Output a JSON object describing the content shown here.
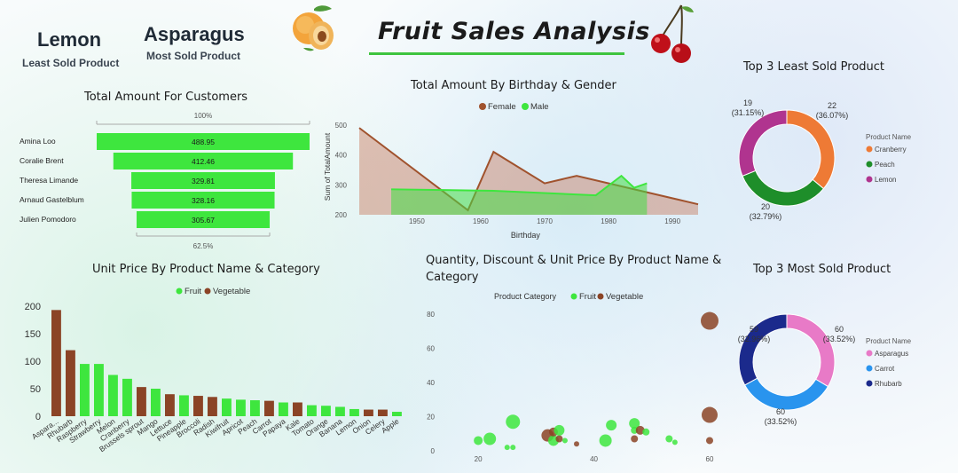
{
  "header": {
    "title": "Fruit Sales Analysis",
    "least_value": "Lemon",
    "least_label": "Least Sold Product",
    "most_value": "Asparagus",
    "most_label": "Most Sold Product"
  },
  "colors": {
    "fruit": "#3ee63e",
    "vegetable": "#8b4426",
    "female": "#a0522d",
    "male": "#3ee63e"
  },
  "chart_data": [
    {
      "id": "funnel",
      "type": "bar",
      "title": "Total Amount For Customers",
      "top_pct": "100%",
      "bottom_pct": "62.5%",
      "categories": [
        "Amina Loo",
        "Coralie Brent",
        "Theresa Limande",
        "Arnaud Gastelblum",
        "Julien Pomodoro"
      ],
      "values": [
        488.95,
        412.46,
        329.81,
        328.16,
        305.67
      ]
    },
    {
      "id": "area",
      "type": "area",
      "title": "Total Amount By Birthday & Gender",
      "xlabel": "Birthday",
      "ylabel": "Sum of TotalAmount",
      "xticks": [
        1950,
        1960,
        1970,
        1980,
        1990
      ],
      "yticks": [
        200,
        300,
        400,
        500
      ],
      "xlim": [
        1941,
        1994
      ],
      "ylim": [
        200,
        520
      ],
      "series": [
        {
          "name": "Female",
          "x": [
            1941,
            1958,
            1962,
            1970,
            1975,
            1985,
            1994
          ],
          "y": [
            490,
            215,
            410,
            305,
            330,
            280,
            235
          ]
        },
        {
          "name": "Male",
          "x": [
            1946,
            1962,
            1978,
            1982,
            1984,
            1986
          ],
          "y": [
            285,
            280,
            265,
            330,
            290,
            305
          ]
        }
      ]
    },
    {
      "id": "unitprice",
      "type": "bar",
      "title": "Unit Price By Product Name & Category",
      "legend": [
        "Fruit",
        "Vegetable"
      ],
      "yticks": [
        0,
        50,
        100,
        150,
        200
      ],
      "ylim": [
        0,
        200
      ],
      "categories": [
        "Aspara...",
        "Rhubarb",
        "Raspberry",
        "Strawberry",
        "Melon",
        "Cranberry",
        "Brussels sprout",
        "Mango",
        "Lettuce",
        "Pineapple",
        "Broccoli",
        "Radish",
        "Kiwifruit",
        "Apricot",
        "Peach",
        "Carrot",
        "Papaya",
        "Kale",
        "Tomato",
        "Orange",
        "Banana",
        "Lemon",
        "Onion",
        "Celery",
        "Apple"
      ],
      "values": [
        193,
        120,
        95,
        95,
        75,
        68,
        53,
        50,
        40,
        38,
        37,
        35,
        32,
        30,
        29,
        28,
        25,
        25,
        20,
        19,
        17,
        13,
        12,
        12,
        8
      ],
      "category_type": [
        "Vegetable",
        "Vegetable",
        "Fruit",
        "Fruit",
        "Fruit",
        "Fruit",
        "Vegetable",
        "Fruit",
        "Vegetable",
        "Fruit",
        "Vegetable",
        "Vegetable",
        "Fruit",
        "Fruit",
        "Fruit",
        "Vegetable",
        "Fruit",
        "Vegetable",
        "Fruit",
        "Fruit",
        "Fruit",
        "Fruit",
        "Vegetable",
        "Vegetable",
        "Fruit"
      ]
    },
    {
      "id": "scatter",
      "type": "scatter",
      "title": "Quantity, Discount & Unit Price By Product Name & Category",
      "legend_title": "Product Category",
      "legend": [
        "Fruit",
        "Vegetable"
      ],
      "xticks": [
        20,
        40,
        60
      ],
      "yticks": [
        0,
        20,
        40,
        60,
        80
      ],
      "xlim": [
        14,
        60
      ],
      "ylim": [
        0,
        82
      ],
      "points": [
        {
          "x": 20,
          "y": 6,
          "r": 5,
          "cat": "Fruit"
        },
        {
          "x": 22,
          "y": 7,
          "r": 7,
          "cat": "Fruit"
        },
        {
          "x": 25,
          "y": 2,
          "r": 3,
          "cat": "Fruit"
        },
        {
          "x": 26,
          "y": 2,
          "r": 3,
          "cat": "Fruit"
        },
        {
          "x": 26,
          "y": 17,
          "r": 8,
          "cat": "Fruit"
        },
        {
          "x": 32,
          "y": 9,
          "r": 7,
          "cat": "Vegetable"
        },
        {
          "x": 33,
          "y": 6,
          "r": 6,
          "cat": "Fruit"
        },
        {
          "x": 33,
          "y": 11,
          "r": 5,
          "cat": "Vegetable"
        },
        {
          "x": 34,
          "y": 7,
          "r": 4,
          "cat": "Vegetable"
        },
        {
          "x": 34,
          "y": 12,
          "r": 6,
          "cat": "Fruit"
        },
        {
          "x": 35,
          "y": 6,
          "r": 3,
          "cat": "Fruit"
        },
        {
          "x": 37,
          "y": 4,
          "r": 3,
          "cat": "Vegetable"
        },
        {
          "x": 42,
          "y": 6,
          "r": 7,
          "cat": "Fruit"
        },
        {
          "x": 43,
          "y": 15,
          "r": 6,
          "cat": "Fruit"
        },
        {
          "x": 47,
          "y": 7,
          "r": 4,
          "cat": "Vegetable"
        },
        {
          "x": 47,
          "y": 16,
          "r": 6,
          "cat": "Fruit"
        },
        {
          "x": 47,
          "y": 12,
          "r": 4,
          "cat": "Fruit"
        },
        {
          "x": 48,
          "y": 12,
          "r": 5,
          "cat": "Vegetable"
        },
        {
          "x": 49,
          "y": 11,
          "r": 4,
          "cat": "Fruit"
        },
        {
          "x": 53,
          "y": 7,
          "r": 4,
          "cat": "Fruit"
        },
        {
          "x": 54,
          "y": 5,
          "r": 3,
          "cat": "Fruit"
        },
        {
          "x": 60,
          "y": 76,
          "r": 10,
          "cat": "Vegetable"
        },
        {
          "x": 60,
          "y": 21,
          "r": 9,
          "cat": "Vegetable"
        },
        {
          "x": 60,
          "y": 6,
          "r": 4,
          "cat": "Vegetable"
        }
      ]
    },
    {
      "id": "least3",
      "type": "pie",
      "title": "Top 3 Least Sold Product",
      "legend_title": "Product Name",
      "slices": [
        {
          "name": "Cranberry",
          "value": 22,
          "pct": "(36.07%)",
          "color": "#ee7a35"
        },
        {
          "name": "Peach",
          "value": 20,
          "pct": "(32.79%)",
          "color": "#1e8e2a"
        },
        {
          "name": "Lemon",
          "value": 19,
          "pct": "(31.15%)",
          "color": "#b0348f"
        }
      ]
    },
    {
      "id": "most3",
      "type": "pie",
      "title": "Top 3 Most Sold Product",
      "legend_title": "Product Name",
      "slices": [
        {
          "name": "Asparagus",
          "value": 60,
          "pct": "(33.52%)",
          "color": "#e87ac7"
        },
        {
          "name": "Carrot",
          "value": 60,
          "pct": "(33.52%)",
          "color": "#2994ee"
        },
        {
          "name": "Rhubarb",
          "value": 59,
          "pct": "(32.96%)",
          "color": "#1b2a8c"
        }
      ]
    }
  ]
}
